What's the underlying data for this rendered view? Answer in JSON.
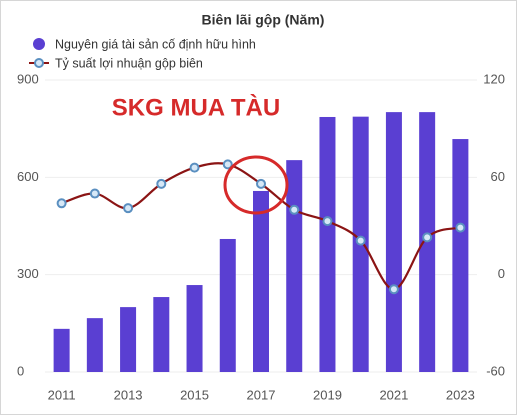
{
  "chart_data": {
    "type": "bar_line",
    "title": "Biên lãi gộp (Năm)",
    "annotation": "SKG MUA TÀU",
    "categories": [
      "2011",
      null,
      "2013",
      null,
      "2015",
      null,
      "2017",
      null,
      "2019",
      null,
      "2021",
      null,
      "2023"
    ],
    "series": [
      {
        "name": "Nguyên giá tài sản cố định hữu hình",
        "type": "bar",
        "axis": "y",
        "color": "#5a3fd2",
        "values": [
          133,
          166,
          200,
          231,
          268,
          410,
          558,
          653,
          786,
          787,
          801,
          801,
          718
        ]
      },
      {
        "name": "Tỷ suất lợi nhuận gộp biên",
        "type": "line",
        "axis": "y2",
        "color": "#8b1414",
        "values": [
          44,
          50,
          41,
          56,
          66,
          68,
          56,
          40,
          33,
          21,
          -9,
          23,
          29
        ]
      }
    ],
    "ylim": [
      0,
      900
    ],
    "yticks": [
      0,
      300,
      600,
      900
    ],
    "y2lim": [
      -60,
      120
    ],
    "y2ticks": [
      -60,
      0,
      60,
      120
    ],
    "grid": true
  }
}
